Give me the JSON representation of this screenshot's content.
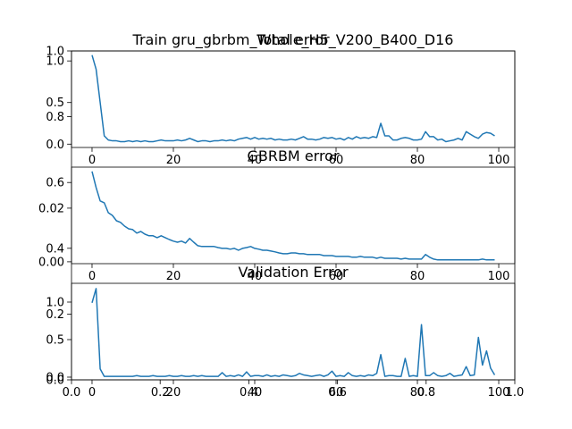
{
  "chart_data": [
    {
      "type": "axes",
      "title": "Train gru_gbrbm_Whole_H5_V200_B400_D16",
      "xlim": [
        0,
        1
      ],
      "ylim": [
        0,
        1
      ],
      "xticks": [
        {
          "value": 0,
          "label": "0.0"
        },
        0.2,
        0.4,
        0.6,
        0.8,
        {
          "value": 1,
          "label": "1.0"
        }
      ],
      "yticks": [
        {
          "value": 0,
          "label": "0.0"
        },
        0.2,
        0.4,
        0.6,
        0.8,
        {
          "value": 1,
          "label": "1.0"
        }
      ]
    },
    {
      "type": "line",
      "title": "Total error",
      "x": [
        0,
        1,
        2,
        3,
        4,
        5,
        6,
        7,
        8,
        9,
        10,
        11,
        12,
        13,
        14,
        15,
        16,
        17,
        18,
        19,
        20,
        21,
        22,
        23,
        24,
        25,
        26,
        27,
        28,
        29,
        30,
        31,
        32,
        33,
        34,
        35,
        36,
        37,
        38,
        39,
        40,
        41,
        42,
        43,
        44,
        45,
        46,
        47,
        48,
        49,
        50,
        51,
        52,
        53,
        54,
        55,
        56,
        57,
        58,
        59,
        60,
        61,
        62,
        63,
        64,
        65,
        66,
        67,
        68,
        69,
        70,
        71,
        72,
        73,
        74,
        75,
        76,
        77,
        78,
        79,
        80,
        81,
        82,
        83,
        84,
        85,
        86,
        87,
        88,
        89,
        90,
        91,
        92,
        93,
        94,
        95,
        96,
        97,
        98,
        99
      ],
      "series": [
        {
          "color": "#1f77b4",
          "values": [
            1.07,
            0.9,
            0.5,
            0.1,
            0.05,
            0.04,
            0.04,
            0.03,
            0.03,
            0.04,
            0.03,
            0.04,
            0.03,
            0.04,
            0.03,
            0.03,
            0.04,
            0.05,
            0.04,
            0.04,
            0.04,
            0.05,
            0.04,
            0.05,
            0.07,
            0.05,
            0.03,
            0.04,
            0.04,
            0.03,
            0.04,
            0.04,
            0.05,
            0.04,
            0.05,
            0.04,
            0.06,
            0.07,
            0.08,
            0.06,
            0.08,
            0.06,
            0.07,
            0.06,
            0.07,
            0.05,
            0.06,
            0.05,
            0.05,
            0.06,
            0.05,
            0.07,
            0.09,
            0.06,
            0.06,
            0.05,
            0.06,
            0.08,
            0.07,
            0.08,
            0.06,
            0.07,
            0.05,
            0.08,
            0.06,
            0.09,
            0.07,
            0.08,
            0.07,
            0.09,
            0.08,
            0.25,
            0.1,
            0.1,
            0.05,
            0.05,
            0.07,
            0.08,
            0.07,
            0.05,
            0.05,
            0.06,
            0.15,
            0.09,
            0.09,
            0.05,
            0.06,
            0.03,
            0.04,
            0.05,
            0.07,
            0.05,
            0.15,
            0.12,
            0.09,
            0.07,
            0.12,
            0.14,
            0.13,
            0.1
          ]
        }
      ],
      "xlim": [
        -5.05,
        103.95
      ],
      "ylim": [
        -0.04,
        1.12
      ],
      "xticks": [
        0,
        20,
        40,
        60,
        80,
        100
      ],
      "yticks": [
        {
          "value": 0,
          "label": "0.0"
        },
        0.5,
        {
          "value": 1,
          "label": "1.0"
        }
      ]
    },
    {
      "type": "line",
      "title": "GBRBM error",
      "x": [
        0,
        1,
        2,
        3,
        4,
        5,
        6,
        7,
        8,
        9,
        10,
        11,
        12,
        13,
        14,
        15,
        16,
        17,
        18,
        19,
        20,
        21,
        22,
        23,
        24,
        25,
        26,
        27,
        28,
        29,
        30,
        31,
        32,
        33,
        34,
        35,
        36,
        37,
        38,
        39,
        40,
        41,
        42,
        43,
        44,
        45,
        46,
        47,
        48,
        49,
        50,
        51,
        52,
        53,
        54,
        55,
        56,
        57,
        58,
        59,
        60,
        61,
        62,
        63,
        64,
        65,
        66,
        67,
        68,
        69,
        70,
        71,
        72,
        73,
        74,
        75,
        76,
        77,
        78,
        79,
        80,
        81,
        82,
        83,
        84,
        85,
        86,
        87,
        88,
        89,
        90,
        91,
        92,
        93,
        94,
        95,
        96,
        97,
        98,
        99
      ],
      "series": [
        {
          "color": "#1f77b4",
          "values": [
            0.0337,
            0.0277,
            0.0227,
            0.022,
            0.0183,
            0.0173,
            0.0153,
            0.0147,
            0.0133,
            0.0123,
            0.012,
            0.0107,
            0.0113,
            0.0103,
            0.0097,
            0.0097,
            0.009,
            0.0097,
            0.009,
            0.0083,
            0.0077,
            0.0073,
            0.0077,
            0.007,
            0.0087,
            0.0073,
            0.006,
            0.0057,
            0.0057,
            0.0057,
            0.0057,
            0.0053,
            0.005,
            0.005,
            0.0047,
            0.005,
            0.0043,
            0.005,
            0.0053,
            0.0057,
            0.005,
            0.0047,
            0.0043,
            0.0043,
            0.004,
            0.0037,
            0.0033,
            0.003,
            0.003,
            0.0033,
            0.0033,
            0.003,
            0.003,
            0.0027,
            0.0027,
            0.0027,
            0.0027,
            0.0023,
            0.0023,
            0.0023,
            0.002,
            0.002,
            0.002,
            0.002,
            0.0017,
            0.0017,
            0.002,
            0.0017,
            0.0017,
            0.0017,
            0.0013,
            0.0017,
            0.0013,
            0.0013,
            0.0013,
            0.0013,
            0.001,
            0.0013,
            0.001,
            0.001,
            0.001,
            0.001,
            0.0027,
            0.0017,
            0.001,
            0.0007,
            0.0007,
            0.0007,
            0.0007,
            0.0007,
            0.0007,
            0.0007,
            0.0007,
            0.0007,
            0.0007,
            0.0007,
            0.001,
            0.0007,
            0.0007,
            0.0007
          ]
        }
      ],
      "xlim": [
        -5.05,
        103.95
      ],
      "ylim": [
        -0.0007,
        0.0353
      ],
      "xticks": [
        0,
        20,
        40,
        60,
        80,
        100
      ],
      "yticks": [
        {
          "value": 0,
          "label": "0.00"
        },
        0.02
      ]
    },
    {
      "type": "line",
      "title": "Validation Error",
      "x": [
        0,
        1,
        2,
        3,
        4,
        5,
        6,
        7,
        8,
        9,
        10,
        11,
        12,
        13,
        14,
        15,
        16,
        17,
        18,
        19,
        20,
        21,
        22,
        23,
        24,
        25,
        26,
        27,
        28,
        29,
        30,
        31,
        32,
        33,
        34,
        35,
        36,
        37,
        38,
        39,
        40,
        41,
        42,
        43,
        44,
        45,
        46,
        47,
        48,
        49,
        50,
        51,
        52,
        53,
        54,
        55,
        56,
        57,
        58,
        59,
        60,
        61,
        62,
        63,
        64,
        65,
        66,
        67,
        68,
        69,
        70,
        71,
        72,
        73,
        74,
        75,
        76,
        77,
        78,
        79,
        80,
        81,
        82,
        83,
        84,
        85,
        86,
        87,
        88,
        89,
        90,
        91,
        92,
        93,
        94,
        95,
        96,
        97,
        98,
        99
      ],
      "series": [
        {
          "color": "#1f77b4",
          "values": [
            0.99,
            1.18,
            0.11,
            0.01,
            0.01,
            0.01,
            0.01,
            0.01,
            0.01,
            0.01,
            0.01,
            0.02,
            0.01,
            0.01,
            0.01,
            0.02,
            0.01,
            0.01,
            0.01,
            0.02,
            0.01,
            0.01,
            0.02,
            0.01,
            0.01,
            0.02,
            0.01,
            0.02,
            0.01,
            0.01,
            0.01,
            0.01,
            0.06,
            0.01,
            0.02,
            0.01,
            0.03,
            0.01,
            0.07,
            0.01,
            0.02,
            0.02,
            0.01,
            0.03,
            0.01,
            0.02,
            0.01,
            0.03,
            0.02,
            0.01,
            0.02,
            0.05,
            0.03,
            0.02,
            0.01,
            0.02,
            0.03,
            0.01,
            0.03,
            0.08,
            0.01,
            0.02,
            0.01,
            0.06,
            0.02,
            0.01,
            0.02,
            0.01,
            0.03,
            0.02,
            0.05,
            0.3,
            0.01,
            0.02,
            0.02,
            0.01,
            0.01,
            0.25,
            0.01,
            0.02,
            0.01,
            0.7,
            0.02,
            0.02,
            0.06,
            0.02,
            0.01,
            0.02,
            0.05,
            0.01,
            0.02,
            0.03,
            0.14,
            0.02,
            0.03,
            0.53,
            0.16,
            0.35,
            0.12,
            0.03
          ]
        }
      ],
      "xlim": [
        -5.05,
        103.95
      ],
      "ylim": [
        -0.036,
        1.25
      ],
      "xticks": [
        0,
        20,
        40,
        60,
        80,
        100
      ],
      "yticks": [
        {
          "value": 0,
          "label": "0.0"
        },
        0.5,
        {
          "value": 1,
          "label": "1.0"
        }
      ]
    }
  ]
}
